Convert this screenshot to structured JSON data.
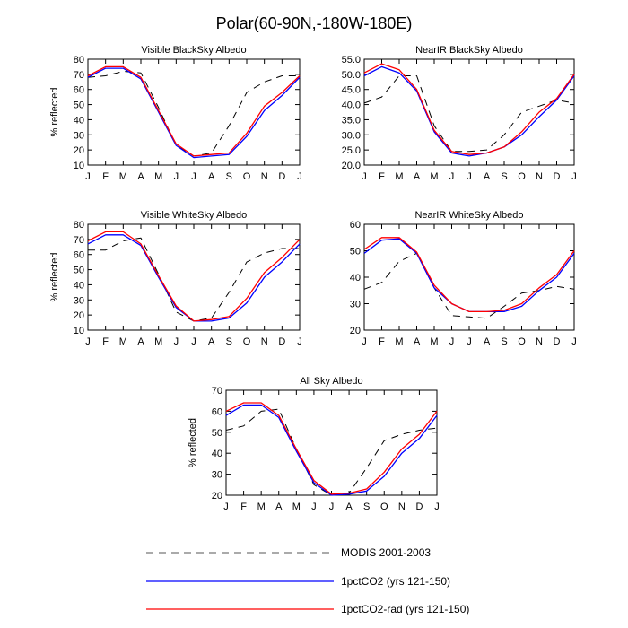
{
  "figure": {
    "title": "Polar(60-90N,-180W-180E)",
    "months": [
      "J",
      "F",
      "M",
      "A",
      "M",
      "J",
      "J",
      "A",
      "S",
      "O",
      "N",
      "D",
      "J"
    ],
    "ylabel": "% reflected"
  },
  "legend": {
    "entries": [
      {
        "label": "MODIS 2001-2003",
        "color": "#000000",
        "dash": "8,6"
      },
      {
        "label": "1pctCO2 (yrs 121-150)",
        "color": "#0000ff",
        "dash": ""
      },
      {
        "label": "1pctCO2-rad (yrs 121-150)",
        "color": "#ff0000",
        "dash": ""
      }
    ]
  },
  "chart_data": [
    {
      "type": "line",
      "title": "Visible BlackSky Albedo",
      "xlabel": "",
      "ylabel": "% reflected",
      "x": [
        "J",
        "F",
        "M",
        "A",
        "M",
        "J",
        "J",
        "A",
        "S",
        "O",
        "N",
        "D",
        "J"
      ],
      "ylim": [
        10,
        80
      ],
      "yticks": [
        10,
        20,
        30,
        40,
        50,
        60,
        70,
        80
      ],
      "ytick_labels": [
        "10",
        "20",
        "30",
        "40",
        "50",
        "60",
        "70",
        "80"
      ],
      "series": [
        {
          "name": "MODIS 2001-2003",
          "values": [
            68,
            69,
            72,
            71,
            48,
            23,
            16,
            18,
            36,
            58,
            65,
            69,
            69
          ]
        },
        {
          "name": "1pctCO2 (yrs 121-150)",
          "values": [
            68,
            74,
            74,
            67,
            45,
            23,
            15,
            16,
            17,
            29,
            46,
            56,
            68
          ]
        },
        {
          "name": "1pctCO2-rad (yrs 121-150)",
          "values": [
            69,
            75,
            75,
            68,
            46,
            24,
            16,
            17,
            18,
            31,
            49,
            58,
            69
          ]
        }
      ]
    },
    {
      "type": "line",
      "title": "NearIR BlackSky Albedo",
      "xlabel": "",
      "ylabel": "",
      "x": [
        "J",
        "F",
        "M",
        "A",
        "M",
        "J",
        "J",
        "A",
        "S",
        "O",
        "N",
        "D",
        "J"
      ],
      "ylim": [
        20,
        55
      ],
      "yticks": [
        20,
        25,
        30,
        35,
        40,
        45,
        50,
        55
      ],
      "ytick_labels": [
        "20.0",
        "25.0",
        "30.0",
        "35.0",
        "40.0",
        "45.0",
        "50.0",
        "55.0"
      ],
      "series": [
        {
          "name": "MODIS 2001-2003",
          "values": [
            40.5,
            42.5,
            49.5,
            49.5,
            33,
            24.5,
            24.5,
            25,
            30,
            37.5,
            39.5,
            41.5,
            40.5
          ]
        },
        {
          "name": "1pctCO2 (yrs 121-150)",
          "values": [
            49.5,
            52.5,
            50.5,
            44.5,
            31,
            24,
            23,
            24,
            26,
            30,
            36,
            41.5,
            49.5
          ]
        },
        {
          "name": "1pctCO2-rad (yrs 121-150)",
          "values": [
            50.5,
            53.5,
            51.5,
            45,
            31.5,
            24.5,
            23.5,
            24,
            26,
            31,
            37.5,
            42,
            50
          ]
        }
      ]
    },
    {
      "type": "line",
      "title": "Visible WhiteSky Albedo",
      "xlabel": "",
      "ylabel": "% reflected",
      "x": [
        "J",
        "F",
        "M",
        "A",
        "M",
        "J",
        "J",
        "A",
        "S",
        "O",
        "N",
        "D",
        "J"
      ],
      "ylim": [
        10,
        80
      ],
      "yticks": [
        10,
        20,
        30,
        40,
        50,
        60,
        70,
        80
      ],
      "ytick_labels": [
        "10",
        "20",
        "30",
        "40",
        "50",
        "60",
        "70",
        "80"
      ],
      "series": [
        {
          "name": "MODIS 2001-2003",
          "values": [
            63,
            63,
            69,
            71,
            47,
            22,
            16,
            18,
            35,
            55,
            61,
            64,
            64
          ]
        },
        {
          "name": "1pctCO2 (yrs 121-150)",
          "values": [
            67,
            73,
            73,
            66,
            45,
            25,
            16,
            16,
            18,
            28,
            45,
            55,
            67
          ]
        },
        {
          "name": "1pctCO2-rad (yrs 121-150)",
          "values": [
            69,
            75,
            75,
            67,
            46,
            26,
            16,
            17,
            19,
            31,
            48,
            58,
            70
          ]
        }
      ]
    },
    {
      "type": "line",
      "title": "NearIR WhiteSky Albedo",
      "xlabel": "",
      "ylabel": "",
      "x": [
        "J",
        "F",
        "M",
        "A",
        "M",
        "J",
        "J",
        "A",
        "S",
        "O",
        "N",
        "D",
        "J"
      ],
      "ylim": [
        20,
        60
      ],
      "yticks": [
        20,
        30,
        40,
        50,
        60
      ],
      "ytick_labels": [
        "20",
        "30",
        "40",
        "50",
        "60"
      ],
      "series": [
        {
          "name": "MODIS 2001-2003",
          "values": [
            35.5,
            38,
            46,
            49,
            36,
            25.5,
            25,
            24.5,
            29,
            34,
            35,
            36.5,
            35.5
          ]
        },
        {
          "name": "1pctCO2 (yrs 121-150)",
          "values": [
            49,
            54,
            54.5,
            49,
            36,
            30,
            27,
            27,
            27,
            29,
            35,
            40,
            49
          ]
        },
        {
          "name": "1pctCO2-rad (yrs 121-150)",
          "values": [
            50.5,
            55,
            55,
            49.5,
            37,
            30,
            27,
            27,
            27.5,
            30,
            36,
            41,
            50
          ]
        }
      ]
    },
    {
      "type": "line",
      "title": "All Sky Albedo",
      "xlabel": "",
      "ylabel": "% reflected",
      "x": [
        "J",
        "F",
        "M",
        "A",
        "M",
        "J",
        "J",
        "A",
        "S",
        "O",
        "N",
        "D",
        "J"
      ],
      "ylim": [
        20,
        70
      ],
      "yticks": [
        20,
        30,
        40,
        50,
        60,
        70
      ],
      "ytick_labels": [
        "20",
        "30",
        "40",
        "50",
        "60",
        "70"
      ],
      "series": [
        {
          "name": "MODIS 2001-2003",
          "values": [
            51,
            53,
            60,
            61,
            42,
            25,
            20,
            21,
            33,
            46,
            49,
            51,
            52
          ]
        },
        {
          "name": "1pctCO2 (yrs 121-150)",
          "values": [
            58,
            63,
            63,
            57,
            41,
            26,
            20,
            20.5,
            22,
            29,
            40,
            47,
            58
          ]
        },
        {
          "name": "1pctCO2-rad (yrs 121-150)",
          "values": [
            60,
            64,
            64,
            58,
            42,
            27,
            20.5,
            21,
            23,
            31,
            42,
            49,
            60
          ]
        }
      ]
    }
  ]
}
